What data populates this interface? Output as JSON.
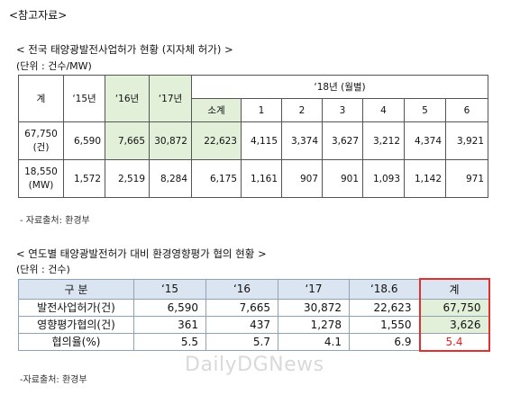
{
  "heading": "<참고자료>",
  "section1": {
    "title": "< 전국 태양광발전사업허가 현황 (지자체 허가) >",
    "unit": "(단위 : 건수/MW)",
    "table": {
      "col_total": "계",
      "col_y15": "‘15년",
      "col_y16": "‘16년",
      "col_y17": "‘17년",
      "col_y18_group": "‘18년 (월별)",
      "col_subtotal": "소계",
      "months": [
        "1",
        "2",
        "3",
        "4",
        "5",
        "6"
      ],
      "row1": {
        "total": "67,750",
        "total_unit": "(건)",
        "y15": "6,590",
        "y16": "7,665",
        "y17": "30,872",
        "subtotal": "22,623",
        "months": [
          "4,115",
          "3,374",
          "3,627",
          "3,212",
          "4,374",
          "3,921"
        ]
      },
      "row2": {
        "total": "18,550",
        "total_unit": "(MW)",
        "y15": "1,572",
        "y16": "2,519",
        "y17": "8,284",
        "subtotal": "6,175",
        "months": [
          "1,161",
          "907",
          "901",
          "1,093",
          "1,142",
          "971"
        ]
      }
    },
    "source": "- 자료출처: 환경부"
  },
  "section2": {
    "title": "< 연도별 태양광발전허가 대비 환경영향평가 협의 현황 >",
    "unit": "(단위 : 건수)",
    "table": {
      "header": [
        "구 분",
        "‘15",
        "‘16",
        "‘17",
        "‘18.6",
        "계"
      ],
      "rows": [
        [
          "발전사업허가(건)",
          "6,590",
          "7,665",
          "30,872",
          "22,623",
          "67,750"
        ],
        [
          "영향평가협의(건)",
          "361",
          "437",
          "1,278",
          "1,550",
          "3,626"
        ],
        [
          "협의율(%)",
          "5.5",
          "5.7",
          "4.1",
          "6.9",
          "5.4"
        ]
      ]
    },
    "source": "-자료출처: 환경부"
  },
  "watermark": "DailyDGNews"
}
